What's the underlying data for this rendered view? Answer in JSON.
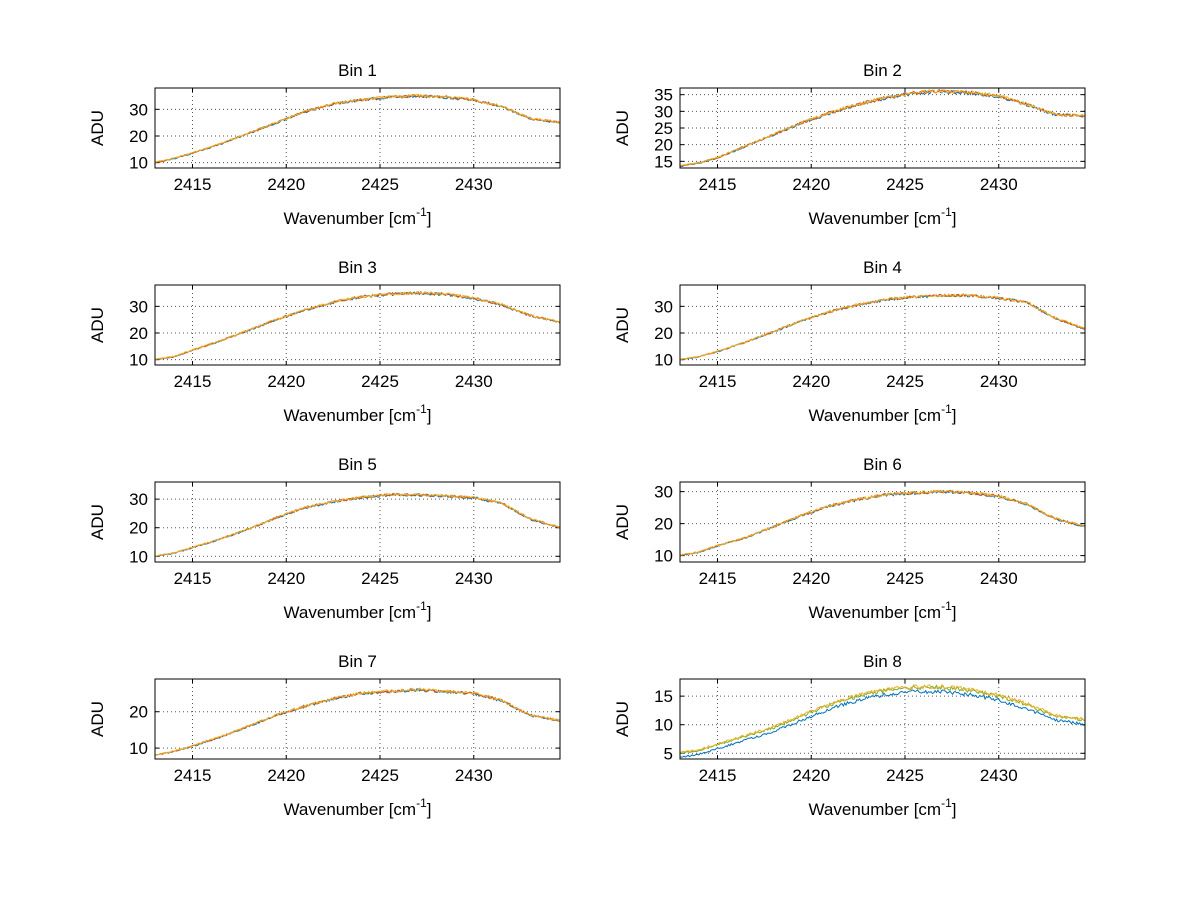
{
  "page": {
    "background": "#ffffff"
  },
  "chart_data": [
    {
      "type": "line",
      "title": "Bin 1",
      "xlabel": "Wavenumber [cm^-1]",
      "ylabel": "ADU",
      "xlim": [
        2413,
        2434.6
      ],
      "ylim": [
        8,
        38
      ],
      "xticks": [
        2415,
        2420,
        2425,
        2430
      ],
      "yticks": [
        10,
        20,
        30
      ],
      "grid": true,
      "anchors_x": [
        2413,
        2414,
        2415,
        2416.5,
        2418,
        2419.5,
        2421,
        2422.5,
        2424,
        2425.5,
        2427,
        2428.5,
        2430,
        2431.5,
        2433,
        2434.6
      ],
      "anchors_y": [
        10,
        11.5,
        13.5,
        17,
        21,
        25,
        29,
        32,
        33.5,
        34.5,
        35,
        34.5,
        33.5,
        31,
        26.5,
        25
      ],
      "noise": 0.5,
      "series": [
        {
          "name": "trace-blue",
          "color": "#0072BD",
          "offset": 0
        },
        {
          "name": "trace-orange",
          "color": "#D95319",
          "offset": 0.08
        },
        {
          "name": "trace-yellow",
          "color": "#EDB120",
          "offset": 0.16
        }
      ]
    },
    {
      "type": "line",
      "title": "Bin 2",
      "xlabel": "Wavenumber [cm^-1]",
      "ylabel": "ADU",
      "xlim": [
        2413,
        2434.6
      ],
      "ylim": [
        13,
        37
      ],
      "xticks": [
        2415,
        2420,
        2425,
        2430
      ],
      "yticks": [
        15,
        20,
        25,
        30,
        35
      ],
      "grid": true,
      "anchors_x": [
        2413,
        2414,
        2415,
        2416.5,
        2418,
        2419.5,
        2421,
        2422.5,
        2424,
        2425.5,
        2427,
        2428.5,
        2430,
        2431.5,
        2433,
        2434.6
      ],
      "anchors_y": [
        13.5,
        14.5,
        16,
        19.5,
        23,
        26.5,
        29.5,
        32,
        34,
        35.5,
        36,
        35.5,
        34.5,
        32,
        29,
        28.5
      ],
      "noise": 0.5,
      "series": [
        {
          "name": "trace-blue",
          "color": "#0072BD",
          "offset": 0
        },
        {
          "name": "trace-orange",
          "color": "#D95319",
          "offset": 0.08
        },
        {
          "name": "trace-yellow",
          "color": "#EDB120",
          "offset": 0.16
        }
      ]
    },
    {
      "type": "line",
      "title": "Bin 3",
      "xlabel": "Wavenumber [cm^-1]",
      "ylabel": "ADU",
      "xlim": [
        2413,
        2434.6
      ],
      "ylim": [
        8,
        38
      ],
      "xticks": [
        2415,
        2420,
        2425,
        2430
      ],
      "yticks": [
        10,
        20,
        30
      ],
      "grid": true,
      "anchors_x": [
        2413,
        2414,
        2415,
        2416.5,
        2418,
        2419.5,
        2421,
        2422.5,
        2424,
        2425.5,
        2427,
        2428.5,
        2430,
        2431.5,
        2433,
        2434.6
      ],
      "anchors_y": [
        10,
        11,
        13.5,
        17,
        21,
        25,
        28.5,
        31.5,
        33.5,
        34.5,
        35,
        34.5,
        33,
        30.5,
        26.5,
        24
      ],
      "noise": 0.5,
      "series": [
        {
          "name": "trace-blue",
          "color": "#0072BD",
          "offset": 0
        },
        {
          "name": "trace-orange",
          "color": "#D95319",
          "offset": 0.08
        },
        {
          "name": "trace-yellow",
          "color": "#EDB120",
          "offset": 0.16
        }
      ]
    },
    {
      "type": "line",
      "title": "Bin 4",
      "xlabel": "Wavenumber [cm^-1]",
      "ylabel": "ADU",
      "xlim": [
        2413,
        2434.6
      ],
      "ylim": [
        8,
        38
      ],
      "xticks": [
        2415,
        2420,
        2425,
        2430
      ],
      "yticks": [
        10,
        20,
        30
      ],
      "grid": true,
      "anchors_x": [
        2413,
        2414,
        2415,
        2416.5,
        2418,
        2419.5,
        2421,
        2422.5,
        2424,
        2425.5,
        2427,
        2428.5,
        2430,
        2431.5,
        2433,
        2434.6
      ],
      "anchors_y": [
        10,
        11,
        13,
        16.5,
        20.5,
        24.5,
        28,
        30.5,
        32.5,
        33.5,
        34,
        34,
        33,
        31.5,
        25.5,
        21.5
      ],
      "noise": 0.5,
      "series": [
        {
          "name": "trace-blue",
          "color": "#0072BD",
          "offset": 0
        },
        {
          "name": "trace-orange",
          "color": "#D95319",
          "offset": 0.08
        },
        {
          "name": "trace-yellow",
          "color": "#EDB120",
          "offset": 0.16
        }
      ]
    },
    {
      "type": "line",
      "title": "Bin 5",
      "xlabel": "Wavenumber [cm^-1]",
      "ylabel": "ADU",
      "xlim": [
        2413,
        2434.6
      ],
      "ylim": [
        8,
        36
      ],
      "xticks": [
        2415,
        2420,
        2425,
        2430
      ],
      "yticks": [
        10,
        20,
        30
      ],
      "grid": true,
      "anchors_x": [
        2413,
        2414,
        2415,
        2416.5,
        2418,
        2419.5,
        2421,
        2422.5,
        2424,
        2425.5,
        2427,
        2428.5,
        2430,
        2431.5,
        2433,
        2434.6
      ],
      "anchors_y": [
        10,
        11,
        13,
        16,
        19.5,
        23.5,
        27,
        29,
        30.5,
        31.5,
        31.5,
        31,
        30.5,
        28.5,
        23,
        20
      ],
      "noise": 0.45,
      "series": [
        {
          "name": "trace-blue",
          "color": "#0072BD",
          "offset": 0
        },
        {
          "name": "trace-orange",
          "color": "#D95319",
          "offset": 0.08
        },
        {
          "name": "trace-yellow",
          "color": "#EDB120",
          "offset": 0.16
        }
      ]
    },
    {
      "type": "line",
      "title": "Bin 6",
      "xlabel": "Wavenumber [cm^-1]",
      "ylabel": "ADU",
      "xlim": [
        2413,
        2434.6
      ],
      "ylim": [
        8,
        33
      ],
      "xticks": [
        2415,
        2420,
        2425,
        2430
      ],
      "yticks": [
        10,
        20,
        30
      ],
      "grid": true,
      "anchors_x": [
        2413,
        2414,
        2415,
        2416.5,
        2418,
        2419.5,
        2421,
        2422.5,
        2424,
        2425.5,
        2427,
        2428.5,
        2430,
        2431.5,
        2433,
        2434.6
      ],
      "anchors_y": [
        10,
        11,
        13,
        15.5,
        19,
        22.5,
        25.5,
        27.5,
        29,
        29.5,
        30,
        29.5,
        28.5,
        26,
        21.5,
        19
      ],
      "noise": 0.45,
      "series": [
        {
          "name": "trace-blue",
          "color": "#0072BD",
          "offset": 0
        },
        {
          "name": "trace-orange",
          "color": "#D95319",
          "offset": 0.08
        },
        {
          "name": "trace-yellow",
          "color": "#EDB120",
          "offset": 0.16
        }
      ]
    },
    {
      "type": "line",
      "title": "Bin 7",
      "xlabel": "Wavenumber [cm^-1]",
      "ylabel": "ADU",
      "xlim": [
        2413,
        2434.6
      ],
      "ylim": [
        7,
        29
      ],
      "xticks": [
        2415,
        2420,
        2425,
        2430
      ],
      "yticks": [
        10,
        20
      ],
      "grid": true,
      "anchors_x": [
        2413,
        2414,
        2415,
        2416.5,
        2418,
        2419.5,
        2421,
        2422.5,
        2424,
        2425.5,
        2427,
        2428.5,
        2430,
        2431.5,
        2433,
        2434.6
      ],
      "anchors_y": [
        8,
        9,
        10.5,
        13,
        16,
        19,
        21.5,
        23.5,
        25,
        25.5,
        26,
        25.5,
        25,
        23,
        19,
        17.5
      ],
      "noise": 0.4,
      "series": [
        {
          "name": "trace-blue",
          "color": "#0072BD",
          "offset": 0
        },
        {
          "name": "trace-orange",
          "color": "#D95319",
          "offset": 0.08
        },
        {
          "name": "trace-yellow",
          "color": "#EDB120",
          "offset": 0.16
        }
      ]
    },
    {
      "type": "line",
      "title": "Bin 8",
      "xlabel": "Wavenumber [cm^-1]",
      "ylabel": "ADU",
      "xlim": [
        2413,
        2434.6
      ],
      "ylim": [
        4,
        18
      ],
      "xticks": [
        2415,
        2420,
        2425,
        2430
      ],
      "yticks": [
        5,
        10,
        15
      ],
      "grid": true,
      "anchors_x": [
        2413,
        2414,
        2415,
        2416.5,
        2418,
        2419.5,
        2421,
        2422.5,
        2424,
        2425.5,
        2427,
        2428.5,
        2430,
        2431.5,
        2433,
        2434.6
      ],
      "anchors_y": [
        5,
        5.5,
        6.5,
        8,
        9.5,
        11.5,
        13.5,
        15,
        16,
        16.5,
        16.5,
        16,
        15,
        13.5,
        11.5,
        10.8
      ],
      "noise": 0.35,
      "series": [
        {
          "name": "trace-blue",
          "color": "#0072BD",
          "offset": -0.7
        },
        {
          "name": "trace-green",
          "color": "#77AC30",
          "offset": 0
        },
        {
          "name": "trace-yellow",
          "color": "#EDB120",
          "offset": 0.15
        }
      ]
    }
  ]
}
